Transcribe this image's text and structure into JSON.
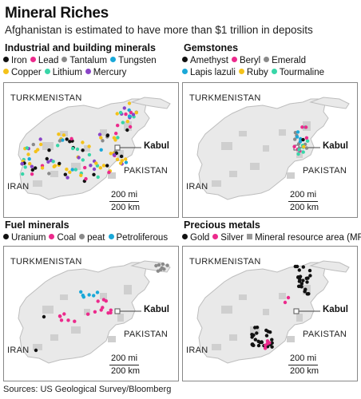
{
  "header": {
    "title": "Mineral Riches",
    "subtitle": "Afghanistan is estimated to have more than $1 trillion in deposits"
  },
  "colors": {
    "iron": "#111111",
    "lead": "#ec2a8c",
    "tantalum": "#8a8a8a",
    "tungsten": "#1aa8d8",
    "copper": "#f4c21a",
    "lithium": "#38d6a8",
    "mercury": "#8a44c8",
    "mra": "#cfcfcf",
    "country": "#e9e9e9"
  },
  "labels": {
    "turkmenistan": "TURKMENISTAN",
    "iran": "IRAN",
    "pakistan": "PAKISTAN",
    "kabul": "Kabul",
    "scale_mi": "200 mi",
    "scale_km": "200 km"
  },
  "panels": [
    {
      "title": "Industrial and building minerals",
      "legend": [
        [
          {
            "label": "Iron",
            "color": "#111111"
          },
          {
            "label": "Lead",
            "color": "#ec2a8c"
          },
          {
            "label": "Tantalum",
            "color": "#8a8a8a"
          },
          {
            "label": "Tungsten",
            "color": "#1aa8d8"
          }
        ],
        [
          {
            "label": "Copper",
            "color": "#f4c21a"
          },
          {
            "label": "Lithium",
            "color": "#38d6a8"
          },
          {
            "label": "Mercury",
            "color": "#8a44c8"
          }
        ]
      ]
    },
    {
      "title": "Gemstones",
      "legend": [
        [
          {
            "label": "Amethyst",
            "color": "#111111"
          },
          {
            "label": "Beryl",
            "color": "#ec2a8c"
          },
          {
            "label": "Emerald",
            "color": "#8a8a8a"
          }
        ],
        [
          {
            "label": "Lapis lazuli",
            "color": "#1aa8d8"
          },
          {
            "label": "Ruby",
            "color": "#f4c21a"
          },
          {
            "label": "Tourmaline",
            "color": "#38d6a8"
          }
        ]
      ]
    },
    {
      "title": "Fuel minerals",
      "legend": [
        [
          {
            "label": "Uranium",
            "color": "#111111"
          },
          {
            "label": "Coal",
            "color": "#ec2a8c"
          },
          {
            "label": "peat",
            "color": "#8a8a8a"
          },
          {
            "label": "Petroliferous",
            "color": "#1aa8d8"
          }
        ]
      ]
    },
    {
      "title": "Precious metals",
      "legend": [
        [
          {
            "label": "Gold",
            "color": "#111111"
          },
          {
            "label": "Silver",
            "color": "#ec2a8c"
          },
          {
            "label": "Mineral resource area (MRA)",
            "color": "#9a9a9a",
            "square": true
          }
        ]
      ]
    }
  ],
  "source": "Sources: US Geological Survey/Bloomberg"
}
